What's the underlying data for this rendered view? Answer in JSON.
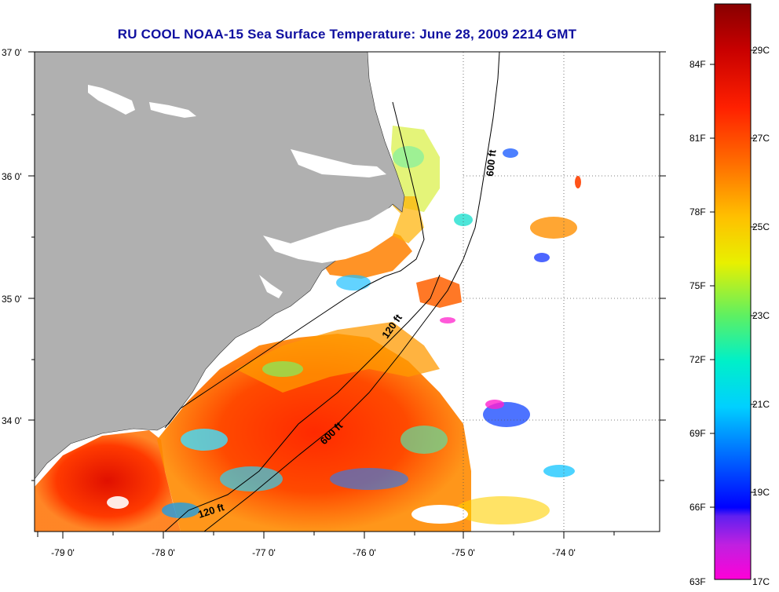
{
  "title": "RU COOL  NOAA-15  Sea Surface Temperature:  June 28, 2009 2214 GMT",
  "latitude_labels": [
    "37 0'",
    "36 0'",
    "35 0'",
    "34 0'"
  ],
  "longitude_labels": [
    "-79 0'",
    "-78 0'",
    "-77 0'",
    "-76 0'",
    "-75 0'",
    "-74 0'"
  ],
  "contour_labels": [
    "600 ft",
    "120 ft",
    "600 ft",
    "120 ft"
  ],
  "colorbar": {
    "fahrenheit_labels": [
      "84F",
      "81F",
      "78F",
      "75F",
      "72F",
      "69F",
      "66F",
      "63F"
    ],
    "celsius_labels": [
      "29C",
      "27C",
      "25C",
      "23C",
      "21C",
      "19C",
      "17C"
    ],
    "gradient": [
      "#ff00d8",
      "#b040e0",
      "#0000ff",
      "#0060ff",
      "#00c8ff",
      "#00f0e0",
      "#60f060",
      "#e0f000",
      "#ffc000",
      "#ff7000",
      "#ff2000",
      "#c00000",
      "#880000"
    ]
  },
  "colors": {
    "land": "#b0b0b0",
    "ocean_empty": "#ffffff",
    "title": "#1010a0"
  }
}
